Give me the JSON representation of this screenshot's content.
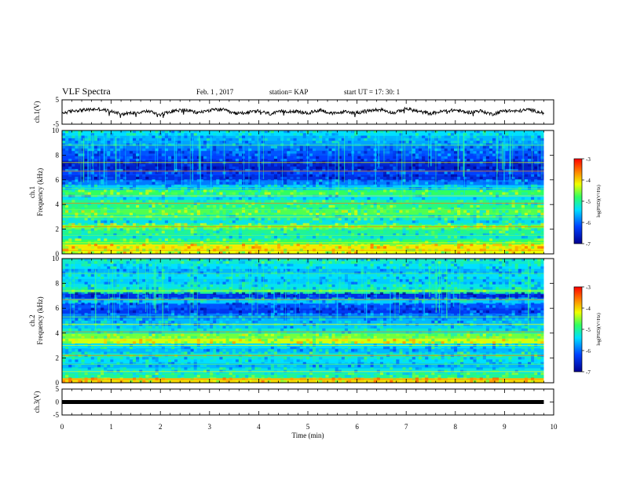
{
  "header": {
    "title": "VLF Spectra",
    "date": "Feb. 1 , 2017",
    "station": "station= KAP",
    "start": "start  UT =   17: 30: 1"
  },
  "chart_data": [
    {
      "type": "line",
      "panel": "ch1-waveform",
      "ylabel": "ch.1(V)",
      "ylim": [
        -5,
        5
      ],
      "yticks": [
        "5",
        "-5"
      ],
      "xlim": [
        0,
        10
      ],
      "x_extent_min": 9.8,
      "description_values": {
        "mean": 0,
        "amplitude_range": [
          -2.5,
          2.5
        ]
      },
      "x": [
        0,
        0.25,
        0.5,
        0.75,
        1.0,
        1.25,
        1.5,
        1.75,
        2.0,
        2.25,
        2.5,
        2.75,
        3.0,
        3.25,
        3.5,
        3.75,
        4.0,
        4.25,
        4.5,
        4.75,
        5.0,
        5.25,
        5.5,
        5.75,
        6.0,
        6.25,
        6.5,
        6.75,
        7.0,
        7.25,
        7.5,
        7.75,
        8.0,
        8.25,
        8.5,
        8.75,
        9.0,
        9.25,
        9.5,
        9.8
      ],
      "y": [
        -0.5,
        0.6,
        0.9,
        1.2,
        0.3,
        -0.8,
        -0.2,
        0.4,
        -1.0,
        0.5,
        0.9,
        -0.3,
        0.7,
        1.1,
        -0.6,
        -0.2,
        0.3,
        -0.8,
        0.4,
        0.2,
        -0.5,
        0.9,
        -0.7,
        0.1,
        -0.3,
        0.6,
        1.0,
        -0.4,
        1.4,
        0.2,
        -0.6,
        0.3,
        0.8,
        -0.2,
        0.5,
        -0.9,
        0.6,
        0.3,
        1.0,
        -0.4
      ]
    },
    {
      "type": "heatmap",
      "panel": "ch1-spectrogram",
      "ylabel": "ch.1\nFrequency (kHz)",
      "ylim": [
        0,
        10
      ],
      "yticks": [
        "0",
        "2",
        "4",
        "6",
        "8",
        "10"
      ],
      "xlim": [
        0,
        10
      ],
      "x_extent_min": 9.8,
      "colorbar": {
        "label": "log(PSD)(V²/Hz)",
        "range": [
          -7,
          -3
        ],
        "ticks": [
          "-3",
          "-4",
          "-5",
          "-6",
          "-7"
        ]
      },
      "freq_bands_khz": [
        0.2,
        0.6,
        1.0,
        1.4,
        1.8,
        2.2,
        2.6,
        3.0,
        3.4,
        3.8,
        4.2,
        4.6,
        5.0,
        5.4,
        5.8,
        6.2,
        6.6,
        7.0,
        7.4,
        7.8,
        8.2,
        8.6,
        9.0,
        9.4,
        9.8
      ],
      "band_log_psd": [
        -4.2,
        -4.1,
        -4.8,
        -5.2,
        -5.0,
        -4.6,
        -5.3,
        -5.1,
        -4.7,
        -4.9,
        -5.0,
        -5.4,
        -4.8,
        -5.5,
        -5.9,
        -6.4,
        -6.2,
        -6.6,
        -6.5,
        -6.2,
        -6.1,
        -5.9,
        -5.7,
        -5.6,
        -5.4
      ]
    },
    {
      "type": "heatmap",
      "panel": "ch2-spectrogram",
      "ylabel": "ch.2\nFrequency (kHz)",
      "ylim": [
        0,
        10
      ],
      "yticks": [
        "0",
        "2",
        "4",
        "6",
        "8",
        "10"
      ],
      "xlim": [
        0,
        10
      ],
      "x_extent_min": 9.8,
      "colorbar": {
        "label": "log(PSD)(V²/Hz)",
        "range": [
          -7,
          -3
        ],
        "ticks": [
          "-3",
          "-4",
          "-5",
          "-6",
          "-7"
        ]
      },
      "freq_bands_khz": [
        0.2,
        0.6,
        1.0,
        1.4,
        1.8,
        2.2,
        2.6,
        3.0,
        3.4,
        3.8,
        4.2,
        4.6,
        5.0,
        5.4,
        5.8,
        6.2,
        6.6,
        7.0,
        7.4,
        7.8,
        8.2,
        8.6,
        9.0,
        9.4,
        9.8
      ],
      "band_log_psd": [
        -4.0,
        -5.0,
        -5.3,
        -5.6,
        -5.4,
        -5.2,
        -5.6,
        -5.4,
        -4.3,
        -4.6,
        -5.2,
        -5.5,
        -5.6,
        -5.9,
        -6.3,
        -6.1,
        -5.5,
        -6.4,
        -5.0,
        -5.3,
        -5.5,
        -5.4,
        -5.6,
        -5.4,
        -5.2
      ]
    },
    {
      "type": "line",
      "panel": "ch3-waveform",
      "ylabel": "ch.3(V)",
      "ylim": [
        -5,
        5
      ],
      "yticks": [
        "5",
        "0",
        "-5"
      ],
      "xlim": [
        0,
        10
      ],
      "x_extent_min": 9.8,
      "x": [
        0,
        9.8
      ],
      "y": [
        0,
        0
      ],
      "xlabel": "Time  (min)",
      "xticks": [
        "0",
        "1",
        "2",
        "3",
        "4",
        "5",
        "6",
        "7",
        "8",
        "9",
        "10"
      ]
    }
  ]
}
